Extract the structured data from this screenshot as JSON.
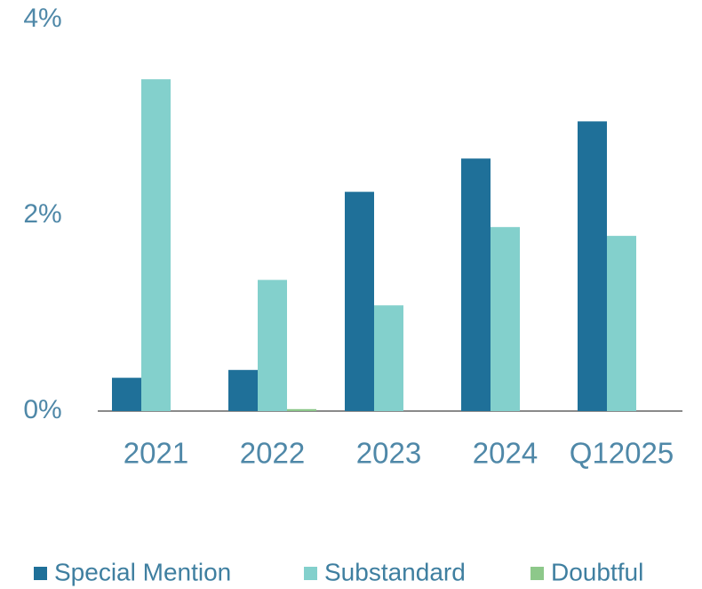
{
  "chart_data": {
    "type": "bar",
    "categories": [
      "2021",
      "2022",
      "2023",
      "2024",
      "Q12025"
    ],
    "series": [
      {
        "name": "Special Mention",
        "color": "#1f7099",
        "values": [
          0.34,
          0.42,
          2.24,
          2.58,
          2.96
        ]
      },
      {
        "name": "Substandard",
        "color": "#83d0cc",
        "values": [
          3.39,
          1.34,
          1.08,
          1.88,
          1.79
        ]
      },
      {
        "name": "Doubtful",
        "color": "#8dc88a",
        "values": [
          0,
          0.02,
          0,
          0,
          0
        ]
      }
    ],
    "ylim": [
      0,
      4
    ],
    "yticks": [
      {
        "value": 0,
        "label": "0%"
      },
      {
        "value": 2,
        "label": "2%"
      },
      {
        "value": 4,
        "label": "4%"
      }
    ],
    "grid": false,
    "legend": "bottom"
  }
}
